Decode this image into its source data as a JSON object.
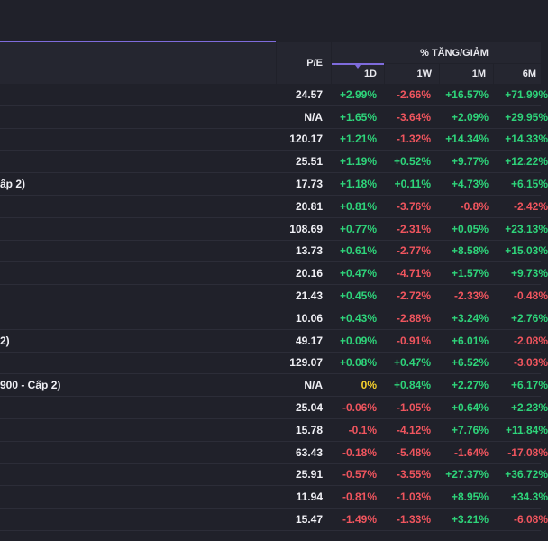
{
  "header": {
    "pe_label": "P/E",
    "change_group_label": "% TĂNG/GIẢM",
    "periods": [
      "1D",
      "1W",
      "1M",
      "6M"
    ],
    "active_period": "1D"
  },
  "colors": {
    "positive": "#2ed47a",
    "negative": "#f0555e",
    "neutral": "#f5d02c",
    "accent": "#7e6bdc"
  },
  "rows": [
    {
      "name": "",
      "pe": "24.57",
      "d1": "+2.99%",
      "w1": "-2.66%",
      "m1": "+16.57%",
      "m6": "+71.99%"
    },
    {
      "name": "",
      "pe": "N/A",
      "d1": "+1.65%",
      "w1": "-3.64%",
      "m1": "+2.09%",
      "m6": "+29.95%"
    },
    {
      "name": "",
      "pe": "120.17",
      "d1": "+1.21%",
      "w1": "-1.32%",
      "m1": "+14.34%",
      "m6": "+14.33%"
    },
    {
      "name": "",
      "pe": "25.51",
      "d1": "+1.19%",
      "w1": "+0.52%",
      "m1": "+9.77%",
      "m6": "+12.22%"
    },
    {
      "name": "ấp 2)",
      "pe": "17.73",
      "d1": "+1.18%",
      "w1": "+0.11%",
      "m1": "+4.73%",
      "m6": "+6.15%"
    },
    {
      "name": "",
      "pe": "20.81",
      "d1": "+0.81%",
      "w1": "-3.76%",
      "m1": "-0.8%",
      "m6": "-2.42%"
    },
    {
      "name": "",
      "pe": "108.69",
      "d1": "+0.77%",
      "w1": "-2.31%",
      "m1": "+0.05%",
      "m6": "+23.13%"
    },
    {
      "name": "",
      "pe": "13.73",
      "d1": "+0.61%",
      "w1": "-2.77%",
      "m1": "+8.58%",
      "m6": "+15.03%"
    },
    {
      "name": "",
      "pe": "20.16",
      "d1": "+0.47%",
      "w1": "-4.71%",
      "m1": "+1.57%",
      "m6": "+9.73%"
    },
    {
      "name": "",
      "pe": "21.43",
      "d1": "+0.45%",
      "w1": "-2.72%",
      "m1": "-2.33%",
      "m6": "-0.48%"
    },
    {
      "name": "",
      "pe": "10.06",
      "d1": "+0.43%",
      "w1": "-2.88%",
      "m1": "+3.24%",
      "m6": "+2.76%"
    },
    {
      "name": "2)",
      "pe": "49.17",
      "d1": "+0.09%",
      "w1": "-0.91%",
      "m1": "+6.01%",
      "m6": "-2.08%"
    },
    {
      "name": "",
      "pe": "129.07",
      "d1": "+0.08%",
      "w1": "+0.47%",
      "m1": "+6.52%",
      "m6": "-3.03%"
    },
    {
      "name": "900 - Cấp 2)",
      "pe": "N/A",
      "d1": "0%",
      "w1": "+0.84%",
      "m1": "+2.27%",
      "m6": "+6.17%"
    },
    {
      "name": "",
      "pe": "25.04",
      "d1": "-0.06%",
      "w1": "-1.05%",
      "m1": "+0.64%",
      "m6": "+2.23%"
    },
    {
      "name": "",
      "pe": "15.78",
      "d1": "-0.1%",
      "w1": "-4.12%",
      "m1": "+7.76%",
      "m6": "+11.84%"
    },
    {
      "name": "",
      "pe": "63.43",
      "d1": "-0.18%",
      "w1": "-5.48%",
      "m1": "-1.64%",
      "m6": "-17.08%"
    },
    {
      "name": "",
      "pe": "25.91",
      "d1": "-0.57%",
      "w1": "-3.55%",
      "m1": "+27.37%",
      "m6": "+36.72%"
    },
    {
      "name": "",
      "pe": "11.94",
      "d1": "-0.81%",
      "w1": "-1.03%",
      "m1": "+8.95%",
      "m6": "+34.3%"
    },
    {
      "name": "",
      "pe": "15.47",
      "d1": "-1.49%",
      "w1": "-1.33%",
      "m1": "+3.21%",
      "m6": "-6.08%"
    }
  ]
}
